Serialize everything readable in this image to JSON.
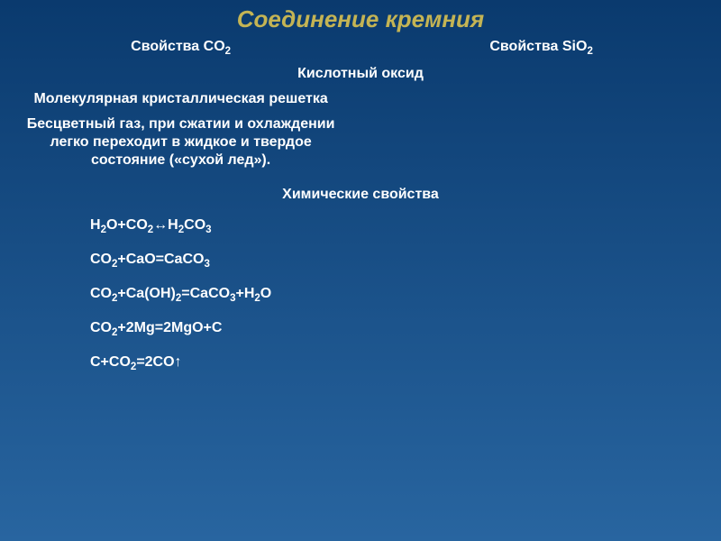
{
  "slide": {
    "title": "Соединение кремния",
    "title_color": "#c4b454",
    "background_gradient": {
      "top": "#0a3a6e",
      "bottom": "#2865a0"
    },
    "text_color": "#ffffff",
    "font_family": "Arial",
    "title_fontsize": 26,
    "body_fontsize": 16
  },
  "table": {
    "headers": {
      "left_html": "Свойства CO<sub>2</sub>",
      "right_html": "Свойства SiO<sub>2</sub>"
    },
    "merged_rows": {
      "oxide": "Кислотный оксид",
      "chem_props": "Химические свойства"
    },
    "left_rows": {
      "lattice": "Молекулярная кристаллическая решетка",
      "state": "Бесцветный газ, при сжатии и охлаждении легко переходит в жидкое и твердое состояние («сухой лед»)."
    },
    "equations": [
      "H<sub>2</sub>O+CO<sub>2</sub>↔H<sub>2</sub>CO<sub>3</sub>",
      "CO<sub>2</sub>+CaO=CaCO<sub>3</sub>",
      "CO<sub>2</sub>+Ca(OH)<sub>2</sub>=CaCO<sub>3</sub>+H<sub>2</sub>O",
      "CO<sub>2</sub>+2Mg=2MgO+C",
      "C+CO<sub>2</sub>=2CO↑"
    ]
  }
}
